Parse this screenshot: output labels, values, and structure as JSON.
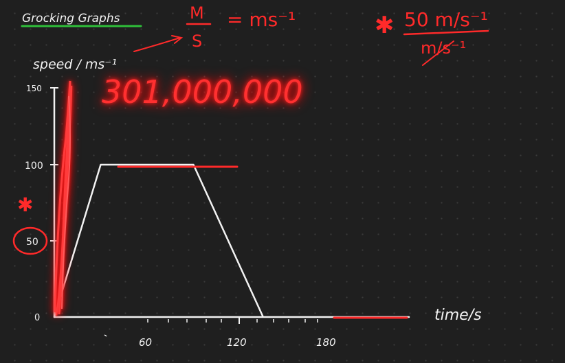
{
  "title": "Graphs",
  "title_prefix": "Grocking",
  "colors": {
    "background": "#1f1f1f",
    "ink": "#f2f2f2",
    "red": "#ff2a2a",
    "title_underline": "#2fbf3a"
  },
  "unit_note": {
    "numerator": "M",
    "denominator": "S",
    "result": "= ms⁻¹"
  },
  "starred_note": {
    "star": "✱",
    "numerator": "50 m/s⁻¹",
    "denominator": "m/s⁻¹"
  },
  "big_number": "301,000,000",
  "starred_marker": "✱",
  "chart_data": {
    "type": "line",
    "ylabel": "speed / ms⁻¹",
    "xlabel": "time/s",
    "y_ticks": [
      "150",
      "100",
      "50",
      "0"
    ],
    "x_ticks": [
      "60",
      "120",
      "180"
    ],
    "series": [
      {
        "x": [
          0,
          30,
          90,
          135
        ],
        "y": [
          0,
          100,
          100,
          0
        ]
      }
    ],
    "highlight_y_tick": "50"
  }
}
